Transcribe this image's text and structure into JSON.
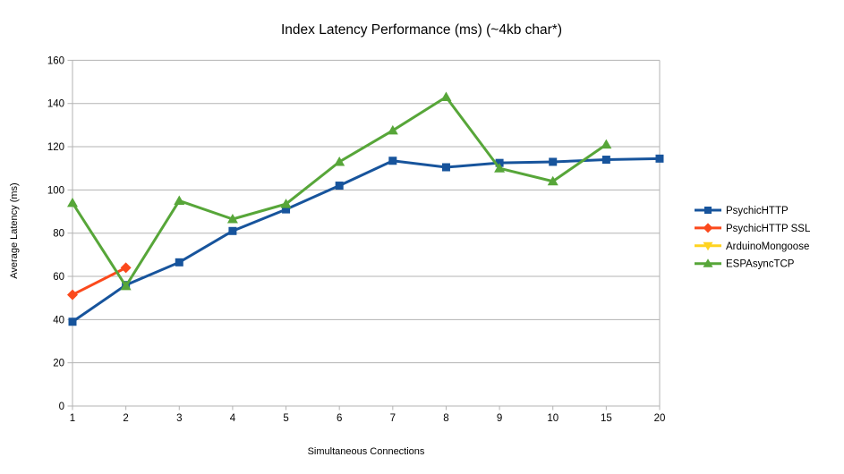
{
  "chart_data": {
    "type": "line",
    "title": "Index Latency Performance (ms) (~4kb char*)",
    "xlabel": "Simultaneous Connections",
    "ylabel": "Average Latency (ms)",
    "categories": [
      "1",
      "2",
      "3",
      "4",
      "5",
      "6",
      "7",
      "8",
      "9",
      "10",
      "15",
      "20"
    ],
    "ylim": [
      0,
      160
    ],
    "ytick_step": 20,
    "ytick_labels": [
      "0",
      "20",
      "40",
      "60",
      "80",
      "100",
      "120",
      "140",
      "160"
    ],
    "grid": "horizontal",
    "legend_position": "right",
    "axis_color": "#b3b3b3",
    "gridline_color": "#b3b3b3",
    "series": [
      {
        "name": "PsychicHTTP",
        "color": "#17549c",
        "marker": "square",
        "values": [
          39,
          56,
          66.5,
          81,
          91,
          102,
          113.5,
          110.5,
          112.5,
          113,
          114,
          114.5
        ]
      },
      {
        "name": "PsychicHTTP SSL",
        "color": "#fb491c",
        "marker": "diamond",
        "values": [
          51.5,
          64,
          null,
          null,
          null,
          null,
          null,
          null,
          null,
          null,
          null,
          null
        ]
      },
      {
        "name": "ArduinoMongoose",
        "color": "#ffd320",
        "marker": "triangle-down",
        "values": [
          null,
          null,
          null,
          null,
          null,
          null,
          null,
          null,
          null,
          null,
          null,
          null
        ]
      },
      {
        "name": "ESPAsyncTCP",
        "color": "#57a639",
        "marker": "triangle-up",
        "values": [
          94,
          55.5,
          95,
          86.5,
          93.5,
          113,
          127.5,
          143,
          110,
          104,
          121,
          null
        ]
      }
    ]
  }
}
